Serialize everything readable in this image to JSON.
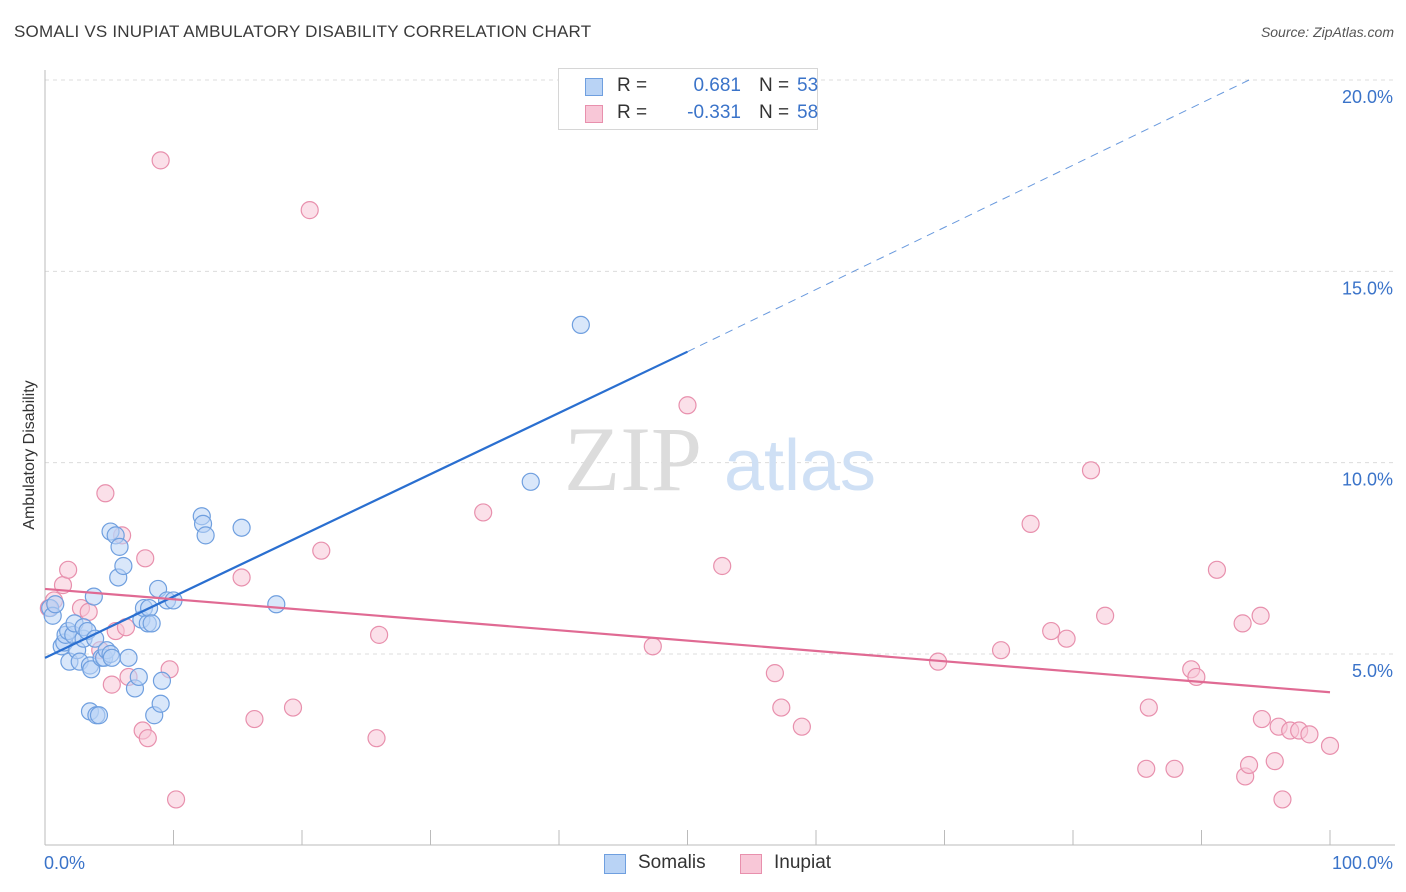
{
  "title": "SOMALI VS INUPIAT AMBULATORY DISABILITY CORRELATION CHART",
  "source": "Source: ZipAtlas.com",
  "watermark": {
    "zip": "ZIP",
    "atlas": "atlas"
  },
  "legend": {
    "r_label": "R =",
    "n_label": "N =",
    "somali": {
      "r": "0.681",
      "n": "53"
    },
    "inupiat": {
      "r": "-0.331",
      "n": "58"
    }
  },
  "colors": {
    "somali_fill": "#b9d3f5",
    "somali_stroke": "#6f9fdf",
    "somali_line": "#2a6fd0",
    "inupiat_fill": "#f8c7d7",
    "inupiat_stroke": "#e890ad",
    "inupiat_line": "#e06a93",
    "tick_label": "#3a73c9",
    "grid": "#dcdcdc"
  },
  "chart_data": {
    "type": "scatter",
    "title": "SOMALI VS INUPIAT AMBULATORY DISABILITY CORRELATION CHART",
    "xlabel": "",
    "ylabel": "Ambulatory Disability",
    "xlim": [
      0,
      100
    ],
    "ylim": [
      0,
      20.5
    ],
    "x_tick_labels": [
      "0.0%",
      "100.0%"
    ],
    "y_ticks": [
      5,
      10,
      15,
      20
    ],
    "y_tick_labels": [
      "5.0%",
      "10.0%",
      "15.0%",
      "20.0%"
    ],
    "grid": true,
    "legend_position": "bottom-center",
    "series": [
      {
        "name": "Somalis",
        "r": 0.681,
        "n": 53,
        "trend": {
          "x0": 0,
          "y0": 4.9,
          "x1": 50,
          "y1": 12.9,
          "dashed_to_x": 93.7,
          "dashed_to_y": 20.0
        },
        "points": [
          [
            0.4,
            6.2
          ],
          [
            0.6,
            6.0
          ],
          [
            0.8,
            6.3
          ],
          [
            1.3,
            5.2
          ],
          [
            1.5,
            5.3
          ],
          [
            1.6,
            5.5
          ],
          [
            1.9,
            4.8
          ],
          [
            1.8,
            5.6
          ],
          [
            2.2,
            5.5
          ],
          [
            2.3,
            5.8
          ],
          [
            2.5,
            5.1
          ],
          [
            2.7,
            4.8
          ],
          [
            3.0,
            5.4
          ],
          [
            3.0,
            5.7
          ],
          [
            3.3,
            5.6
          ],
          [
            3.5,
            4.7
          ],
          [
            3.6,
            4.6
          ],
          [
            3.5,
            3.5
          ],
          [
            3.9,
            5.4
          ],
          [
            4.0,
            3.4
          ],
          [
            3.8,
            6.5
          ],
          [
            4.2,
            3.4
          ],
          [
            4.4,
            4.9
          ],
          [
            4.6,
            4.9
          ],
          [
            4.8,
            5.1
          ],
          [
            5.1,
            5.0
          ],
          [
            5.2,
            4.9
          ],
          [
            5.1,
            8.2
          ],
          [
            5.5,
            8.1
          ],
          [
            5.7,
            7.0
          ],
          [
            5.8,
            7.8
          ],
          [
            6.1,
            7.3
          ],
          [
            6.5,
            4.9
          ],
          [
            7.0,
            4.1
          ],
          [
            7.3,
            4.4
          ],
          [
            7.5,
            5.9
          ],
          [
            7.7,
            6.2
          ],
          [
            8.0,
            5.8
          ],
          [
            8.1,
            6.2
          ],
          [
            8.3,
            5.8
          ],
          [
            8.5,
            3.4
          ],
          [
            8.8,
            6.7
          ],
          [
            9.0,
            3.7
          ],
          [
            9.1,
            4.3
          ],
          [
            9.5,
            6.4
          ],
          [
            10.0,
            6.4
          ],
          [
            12.2,
            8.6
          ],
          [
            12.3,
            8.4
          ],
          [
            12.5,
            8.1
          ],
          [
            15.3,
            8.3
          ],
          [
            18.0,
            6.3
          ],
          [
            37.8,
            9.5
          ],
          [
            41.7,
            13.6
          ]
        ]
      },
      {
        "name": "Inupiat",
        "r": -0.331,
        "n": 58,
        "trend": {
          "x0": 0,
          "y0": 6.7,
          "x1": 100,
          "y1": 4.0
        },
        "points": [
          [
            0.3,
            6.2
          ],
          [
            0.7,
            6.4
          ],
          [
            1.4,
            6.8
          ],
          [
            1.8,
            7.2
          ],
          [
            2.8,
            6.2
          ],
          [
            3.4,
            6.1
          ],
          [
            4.3,
            5.1
          ],
          [
            4.7,
            9.2
          ],
          [
            5.2,
            4.2
          ],
          [
            5.5,
            5.6
          ],
          [
            6.0,
            8.1
          ],
          [
            6.3,
            5.7
          ],
          [
            6.5,
            4.4
          ],
          [
            7.6,
            3.0
          ],
          [
            7.8,
            7.5
          ],
          [
            8.0,
            2.8
          ],
          [
            9.0,
            17.9
          ],
          [
            9.7,
            4.6
          ],
          [
            10.2,
            1.2
          ],
          [
            15.3,
            7.0
          ],
          [
            16.3,
            3.3
          ],
          [
            19.3,
            3.6
          ],
          [
            20.6,
            16.6
          ],
          [
            21.5,
            7.7
          ],
          [
            25.8,
            2.8
          ],
          [
            26.0,
            5.5
          ],
          [
            34.1,
            8.7
          ],
          [
            47.3,
            5.2
          ],
          [
            50.0,
            11.5
          ],
          [
            52.7,
            7.3
          ],
          [
            56.8,
            4.5
          ],
          [
            57.3,
            3.6
          ],
          [
            58.9,
            3.1
          ],
          [
            69.5,
            4.8
          ],
          [
            74.4,
            5.1
          ],
          [
            76.7,
            8.4
          ],
          [
            78.3,
            5.6
          ],
          [
            79.5,
            5.4
          ],
          [
            81.4,
            9.8
          ],
          [
            82.5,
            6.0
          ],
          [
            85.7,
            2.0
          ],
          [
            85.9,
            3.6
          ],
          [
            87.9,
            2.0
          ],
          [
            89.2,
            4.6
          ],
          [
            89.6,
            4.4
          ],
          [
            91.2,
            7.2
          ],
          [
            93.2,
            5.8
          ],
          [
            93.4,
            1.8
          ],
          [
            93.7,
            2.1
          ],
          [
            94.6,
            6.0
          ],
          [
            94.7,
            3.3
          ],
          [
            95.7,
            2.2
          ],
          [
            96.0,
            3.1
          ],
          [
            96.3,
            1.2
          ],
          [
            96.9,
            3.0
          ],
          [
            97.6,
            3.0
          ],
          [
            98.4,
            2.9
          ],
          [
            100.0,
            2.6
          ]
        ]
      }
    ]
  }
}
